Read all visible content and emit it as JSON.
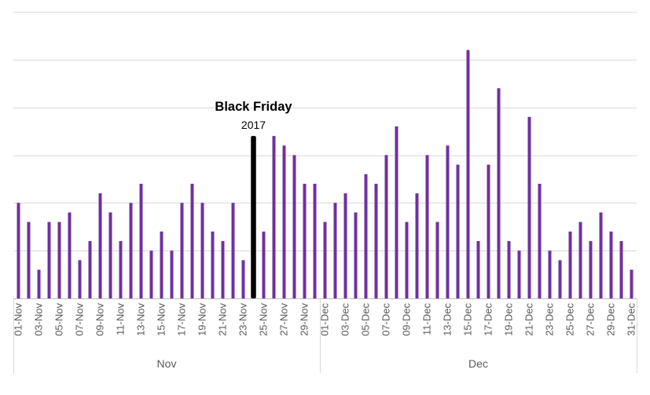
{
  "chart_data": {
    "type": "bar",
    "title": "",
    "xlabel": "",
    "ylabel": "",
    "ylim": [
      0,
      30
    ],
    "y_axis_labels_shown": false,
    "grid": true,
    "legend": "none",
    "groups": [
      {
        "label": "Nov",
        "count": 30
      },
      {
        "label": "Dec",
        "count": 31
      }
    ],
    "categories": [
      "01-Nov",
      "02-Nov",
      "03-Nov",
      "04-Nov",
      "05-Nov",
      "06-Nov",
      "07-Nov",
      "08-Nov",
      "09-Nov",
      "10-Nov",
      "11-Nov",
      "12-Nov",
      "13-Nov",
      "14-Nov",
      "15-Nov",
      "16-Nov",
      "17-Nov",
      "18-Nov",
      "19-Nov",
      "20-Nov",
      "21-Nov",
      "22-Nov",
      "23-Nov",
      "24-Nov",
      "25-Nov",
      "26-Nov",
      "27-Nov",
      "28-Nov",
      "29-Nov",
      "30-Nov",
      "01-Dec",
      "02-Dec",
      "03-Dec",
      "04-Dec",
      "05-Dec",
      "06-Dec",
      "07-Dec",
      "08-Dec",
      "09-Dec",
      "10-Dec",
      "11-Dec",
      "12-Dec",
      "13-Dec",
      "14-Dec",
      "15-Dec",
      "16-Dec",
      "17-Dec",
      "18-Dec",
      "19-Dec",
      "20-Dec",
      "21-Dec",
      "22-Dec",
      "23-Dec",
      "24-Dec",
      "25-Dec",
      "26-Dec",
      "27-Dec",
      "28-Dec",
      "29-Dec",
      "30-Dec",
      "31-Dec"
    ],
    "values": [
      10,
      8,
      3,
      8,
      8,
      9,
      4,
      6,
      11,
      9,
      6,
      10,
      12,
      5,
      7,
      5,
      10,
      12,
      10,
      7,
      6,
      10,
      4,
      17,
      7,
      17,
      16,
      15,
      12,
      12,
      8,
      10,
      11,
      9,
      13,
      12,
      15,
      18,
      8,
      11,
      15,
      8,
      16,
      14,
      26,
      6,
      14,
      22,
      6,
      5,
      19,
      12,
      5,
      4,
      7,
      8,
      6,
      9,
      7,
      6,
      3
    ],
    "bar_color": "#7030a0",
    "highlight": {
      "category": "24-Nov",
      "color": "#000000",
      "annotation_title": "Black Friday",
      "annotation_subtitle": "2017"
    }
  }
}
